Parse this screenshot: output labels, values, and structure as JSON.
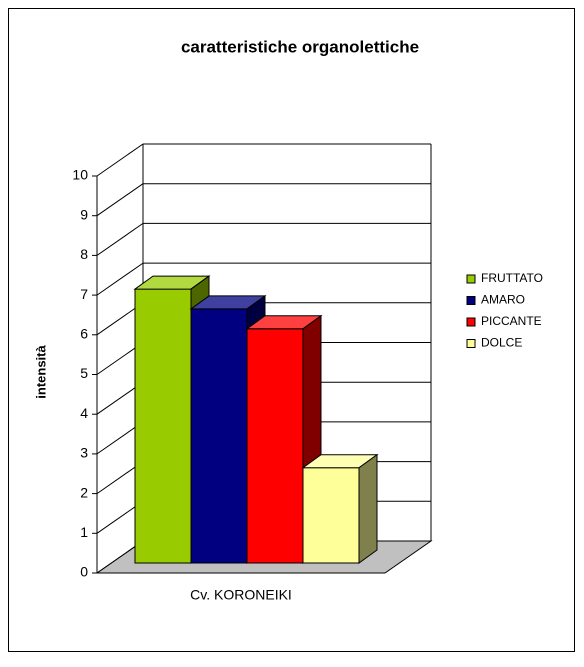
{
  "chart_data": {
    "type": "bar3d",
    "title": "caratteristiche organolettiche",
    "y_label": "intensità",
    "categories": [
      "Cv. KORONEIKI"
    ],
    "series": [
      {
        "name": "FRUTTATO",
        "color": "#99cc00",
        "values": [
          6.9
        ]
      },
      {
        "name": "AMARO",
        "color": "#000080",
        "values": [
          6.4
        ]
      },
      {
        "name": "PICCANTE",
        "color": "#ff0000",
        "values": [
          5.9
        ]
      },
      {
        "name": "DOLCE",
        "color": "#ffff99",
        "values": [
          2.4
        ]
      }
    ],
    "ylim": [
      0,
      10
    ],
    "yticks": [
      0,
      1,
      2,
      3,
      4,
      5,
      6,
      7,
      8,
      9,
      10
    ],
    "grid": true,
    "legend": "right"
  }
}
